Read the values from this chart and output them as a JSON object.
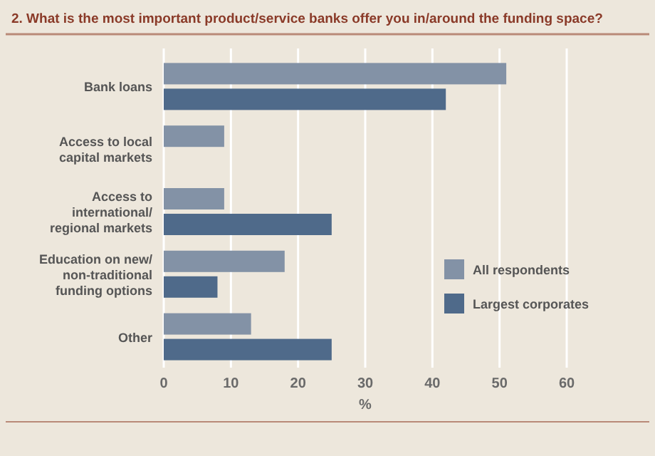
{
  "chart_data": {
    "type": "bar",
    "orientation": "horizontal",
    "title": "2. What is the most important product/service banks offer you in/around the funding space?",
    "categories": [
      "Bank loans",
      "Access to local\ncapital markets",
      "Access to\ninternational/\nregional markets",
      "Education on new/\nnon-traditional\nfunding options",
      "Other"
    ],
    "series": [
      {
        "name": "All respondents",
        "color": "#8392a6",
        "values": [
          51,
          9,
          9,
          18,
          13
        ]
      },
      {
        "name": "Largest corporates",
        "color": "#4f6a8a",
        "values": [
          42,
          0,
          25,
          8,
          25
        ]
      }
    ],
    "xlabel": "%",
    "xlim": [
      0,
      60
    ],
    "xticks": [
      0,
      10,
      20,
      30,
      40,
      50,
      60
    ],
    "grid": "x",
    "legend": "bottom right"
  }
}
